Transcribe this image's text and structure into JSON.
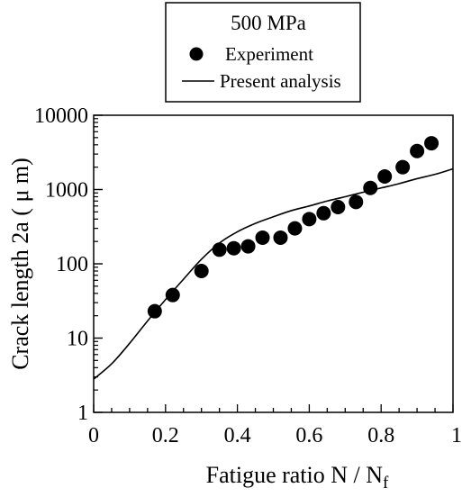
{
  "chart_data": {
    "type": "scatter",
    "title": "",
    "xlabel": "Fatigue ratio  N / N",
    "xlabel_subscript": "f",
    "ylabel": "Crack length 2a ( μ m)",
    "x_scale": "linear",
    "y_scale": "log",
    "xlim": [
      0,
      1
    ],
    "ylim": [
      1,
      10000
    ],
    "x_ticks": [
      {
        "value": 0,
        "label": "0"
      },
      {
        "value": 0.2,
        "label": "0.2"
      },
      {
        "value": 0.4,
        "label": "0.4"
      },
      {
        "value": 0.6,
        "label": "0.6"
      },
      {
        "value": 0.8,
        "label": "0.8"
      },
      {
        "value": 1,
        "label": "1"
      }
    ],
    "y_ticks": [
      {
        "value": 1,
        "label": "1"
      },
      {
        "value": 10,
        "label": "10"
      },
      {
        "value": 100,
        "label": "100"
      },
      {
        "value": 1000,
        "label": "1000"
      },
      {
        "value": 10000,
        "label": "10000"
      }
    ],
    "grid": false,
    "legend": {
      "placement": "top-center",
      "title": "500 MPa",
      "entries": [
        {
          "label": "Experiment",
          "marker": "filled-circle"
        },
        {
          "label": "Present analysis",
          "marker": "line"
        }
      ]
    },
    "series": [
      {
        "name": "Experiment",
        "kind": "scatter",
        "color": "#000000",
        "points": [
          {
            "x": 0.17,
            "y": 23
          },
          {
            "x": 0.22,
            "y": 38
          },
          {
            "x": 0.3,
            "y": 80
          },
          {
            "x": 0.35,
            "y": 155
          },
          {
            "x": 0.39,
            "y": 162
          },
          {
            "x": 0.43,
            "y": 172
          },
          {
            "x": 0.47,
            "y": 225
          },
          {
            "x": 0.52,
            "y": 225
          },
          {
            "x": 0.56,
            "y": 300
          },
          {
            "x": 0.6,
            "y": 400
          },
          {
            "x": 0.64,
            "y": 480
          },
          {
            "x": 0.68,
            "y": 580
          },
          {
            "x": 0.73,
            "y": 680
          },
          {
            "x": 0.77,
            "y": 1050
          },
          {
            "x": 0.81,
            "y": 1500
          },
          {
            "x": 0.86,
            "y": 2000
          },
          {
            "x": 0.9,
            "y": 3300
          },
          {
            "x": 0.94,
            "y": 4200
          }
        ]
      },
      {
        "name": "Present analysis",
        "kind": "line",
        "color": "#000000",
        "points": [
          {
            "x": 0.0,
            "y": 2.8
          },
          {
            "x": 0.05,
            "y": 4.5
          },
          {
            "x": 0.1,
            "y": 8.5
          },
          {
            "x": 0.15,
            "y": 17
          },
          {
            "x": 0.2,
            "y": 33
          },
          {
            "x": 0.25,
            "y": 62
          },
          {
            "x": 0.3,
            "y": 115
          },
          {
            "x": 0.35,
            "y": 190
          },
          {
            "x": 0.4,
            "y": 270
          },
          {
            "x": 0.45,
            "y": 350
          },
          {
            "x": 0.5,
            "y": 430
          },
          {
            "x": 0.55,
            "y": 520
          },
          {
            "x": 0.6,
            "y": 600
          },
          {
            "x": 0.65,
            "y": 700
          },
          {
            "x": 0.7,
            "y": 800
          },
          {
            "x": 0.75,
            "y": 920
          },
          {
            "x": 0.8,
            "y": 1050
          },
          {
            "x": 0.85,
            "y": 1200
          },
          {
            "x": 0.9,
            "y": 1400
          },
          {
            "x": 0.95,
            "y": 1600
          },
          {
            "x": 1.0,
            "y": 1900
          }
        ]
      }
    ]
  }
}
